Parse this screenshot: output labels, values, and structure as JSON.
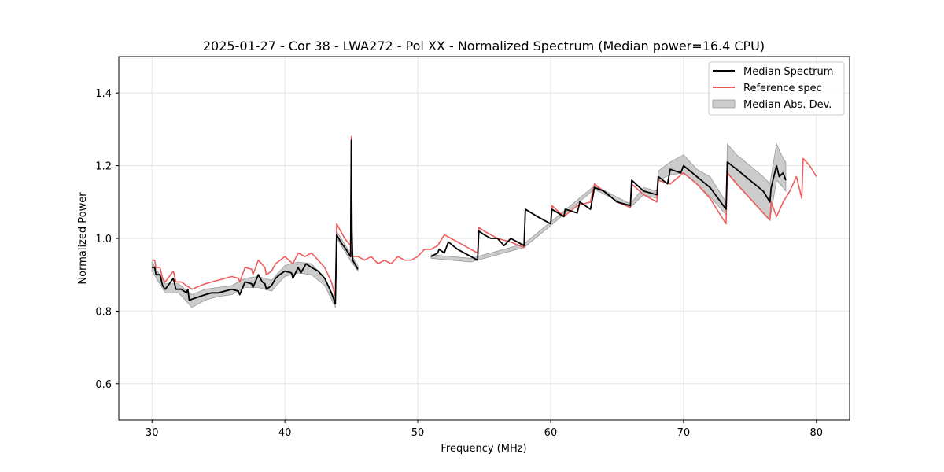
{
  "chart_data": {
    "type": "line",
    "title": "2025-01-27 - Cor 38 - LWA272 - Pol XX - Normalized Spectrum (Median power=16.4 CPU)",
    "xlabel": "Frequency (MHz)",
    "ylabel": "Normalized Power",
    "xlim": [
      27.5,
      82.5
    ],
    "ylim": [
      0.5,
      1.5
    ],
    "xticks": [
      30,
      40,
      50,
      60,
      70,
      80
    ],
    "yticks": [
      0.6,
      0.8,
      1.0,
      1.2,
      1.4
    ],
    "xtick_labels": [
      "30",
      "40",
      "50",
      "60",
      "70",
      "80"
    ],
    "ytick_labels": [
      "0.6",
      "0.8",
      "1.0",
      "1.2",
      "1.4"
    ],
    "grid": true,
    "legend_position": "top-right",
    "colors": {
      "median": "#000000",
      "reference": "#ee5555",
      "band_fill": "#cccccc",
      "band_edge": "#999999"
    },
    "series": [
      {
        "name": "Median Spectrum",
        "kind": "line",
        "x": [
          30.0,
          30.2,
          30.3,
          30.6,
          30.8,
          31.0,
          31.2,
          31.6,
          31.8,
          32.2,
          32.6,
          32.7,
          32.8,
          33.2,
          33.6,
          34.0,
          34.5,
          35.0,
          35.5,
          36.0,
          36.5,
          36.6,
          37.0,
          37.5,
          37.6,
          38.0,
          38.3,
          38.5,
          38.6,
          39.0,
          39.3,
          39.6,
          40.0,
          40.5,
          40.6,
          41.0,
          41.2,
          41.6,
          42.0,
          42.5,
          43.0,
          43.5,
          43.8,
          43.9,
          44.2,
          44.6,
          44.95,
          45.0,
          45.05,
          45.1,
          45.5
        ],
        "y": [
          0.92,
          0.92,
          0.9,
          0.9,
          0.87,
          0.86,
          0.87,
          0.89,
          0.86,
          0.86,
          0.85,
          0.86,
          0.83,
          0.835,
          0.84,
          0.845,
          0.85,
          0.85,
          0.855,
          0.86,
          0.855,
          0.845,
          0.88,
          0.875,
          0.865,
          0.9,
          0.88,
          0.875,
          0.86,
          0.87,
          0.89,
          0.9,
          0.91,
          0.905,
          0.89,
          0.92,
          0.905,
          0.93,
          0.92,
          0.91,
          0.89,
          0.85,
          0.82,
          1.01,
          0.99,
          0.97,
          0.95,
          1.27,
          1.02,
          0.94,
          0.915
        ]
      },
      {
        "name": "Median Spectrum (upper segment)",
        "kind": "line",
        "x": [
          51.0,
          51.5,
          51.6,
          52.0,
          52.3,
          53.0,
          54.0,
          54.5,
          54.6,
          55.0,
          55.5,
          56.0,
          56.5,
          57.0,
          57.5,
          58.0,
          58.1,
          59.0,
          60.0,
          60.1,
          61.0,
          61.1,
          62.0,
          62.2,
          63.0,
          63.3,
          64.0,
          65.0,
          66.0,
          66.1,
          67.0,
          68.0,
          68.1,
          68.8,
          69.0,
          69.8,
          70.0,
          71.0,
          72.0,
          73.2,
          73.3,
          74.0,
          75.0,
          76.0,
          76.5,
          76.6,
          77.0,
          77.2,
          77.5,
          77.7
        ],
        "y": [
          0.95,
          0.96,
          0.97,
          0.96,
          0.99,
          0.97,
          0.95,
          0.94,
          1.02,
          1.01,
          1.0,
          1.0,
          0.98,
          1.0,
          0.99,
          0.98,
          1.08,
          1.06,
          1.04,
          1.08,
          1.06,
          1.08,
          1.07,
          1.1,
          1.08,
          1.14,
          1.13,
          1.1,
          1.09,
          1.16,
          1.13,
          1.12,
          1.17,
          1.15,
          1.19,
          1.18,
          1.2,
          1.17,
          1.14,
          1.08,
          1.21,
          1.19,
          1.16,
          1.13,
          1.1,
          1.14,
          1.2,
          1.17,
          1.18,
          1.16
        ]
      },
      {
        "name": "Reference spec",
        "kind": "line",
        "x": [
          30.0,
          30.2,
          30.3,
          30.6,
          30.8,
          31.0,
          31.6,
          31.8,
          32.2,
          32.6,
          33.0,
          34.0,
          34.5,
          35.0,
          35.5,
          36.0,
          36.5,
          36.6,
          37.0,
          37.5,
          37.6,
          38.0,
          38.5,
          38.6,
          39.0,
          39.3,
          40.0,
          40.6,
          41.0,
          41.5,
          42.0,
          42.5,
          43.0,
          43.5,
          43.8,
          43.9,
          44.5,
          44.95,
          45.0,
          45.05,
          45.5,
          46.0,
          46.5,
          47.0,
          47.5,
          48.0,
          48.5,
          49.0,
          49.5,
          50.0,
          50.5,
          51.0,
          51.5,
          52.0,
          53.0,
          54.0,
          54.5,
          54.6,
          55.0,
          56.0,
          57.0,
          58.0,
          58.1,
          59.0,
          60.0,
          60.1,
          61.0,
          62.0,
          63.0,
          63.3,
          64.0,
          65.0,
          66.0,
          66.1,
          67.0,
          68.0,
          68.1,
          69.0,
          70.0,
          71.0,
          72.0,
          73.2,
          73.3,
          74.0,
          75.0,
          76.0,
          76.5,
          76.6,
          77.0,
          77.5,
          78.0,
          78.5,
          78.9,
          79.0,
          79.5,
          80.0
        ],
        "y": [
          0.94,
          0.94,
          0.92,
          0.92,
          0.89,
          0.88,
          0.91,
          0.88,
          0.88,
          0.87,
          0.86,
          0.875,
          0.88,
          0.885,
          0.89,
          0.895,
          0.89,
          0.88,
          0.92,
          0.915,
          0.9,
          0.94,
          0.92,
          0.9,
          0.91,
          0.93,
          0.95,
          0.93,
          0.96,
          0.95,
          0.96,
          0.94,
          0.92,
          0.88,
          0.84,
          1.04,
          1.0,
          0.98,
          1.28,
          0.95,
          0.95,
          0.94,
          0.95,
          0.93,
          0.94,
          0.93,
          0.95,
          0.94,
          0.94,
          0.95,
          0.97,
          0.97,
          0.98,
          1.01,
          0.99,
          0.97,
          0.96,
          1.03,
          1.02,
          1.0,
          0.99,
          0.975,
          1.08,
          1.06,
          1.04,
          1.09,
          1.06,
          1.09,
          1.1,
          1.15,
          1.13,
          1.1,
          1.085,
          1.15,
          1.12,
          1.1,
          1.16,
          1.15,
          1.18,
          1.15,
          1.11,
          1.04,
          1.18,
          1.15,
          1.11,
          1.07,
          1.05,
          1.1,
          1.06,
          1.1,
          1.13,
          1.17,
          1.11,
          1.22,
          1.2,
          1.17
        ]
      },
      {
        "name": "Median Abs. Dev.",
        "kind": "band",
        "x": [
          30.0,
          31.0,
          32.0,
          33.0,
          34.0,
          35.0,
          36.0,
          37.0,
          38.0,
          39.0,
          40.0,
          41.0,
          42.0,
          43.0,
          43.8,
          43.9,
          45.0,
          45.5
        ],
        "y_low": [
          0.91,
          0.85,
          0.85,
          0.81,
          0.83,
          0.84,
          0.845,
          0.865,
          0.865,
          0.855,
          0.895,
          0.905,
          0.9,
          0.87,
          0.81,
          1.0,
          0.935,
          0.91
        ],
        "y_high": [
          0.935,
          0.875,
          0.875,
          0.845,
          0.86,
          0.865,
          0.87,
          0.89,
          0.895,
          0.885,
          0.925,
          0.935,
          0.93,
          0.89,
          0.83,
          1.02,
          0.955,
          0.925
        ]
      },
      {
        "name": "Median Abs. Dev. (upper segment)",
        "kind": "band",
        "x": [
          51.0,
          54.0,
          58.0,
          60.0,
          63.3,
          66.0,
          67.0,
          68.0,
          68.1,
          69.0,
          70.0,
          71.0,
          72.0,
          73.2,
          73.3,
          74.0,
          75.0,
          76.0,
          76.5,
          77.0,
          77.5,
          77.7
        ],
        "y_low": [
          0.945,
          0.935,
          0.975,
          1.035,
          1.135,
          1.085,
          1.12,
          1.11,
          1.16,
          1.175,
          1.18,
          1.15,
          1.115,
          1.065,
          1.18,
          1.15,
          1.11,
          1.07,
          1.05,
          1.16,
          1.14,
          1.13
        ],
        "y_high": [
          0.955,
          0.945,
          0.985,
          1.045,
          1.145,
          1.095,
          1.14,
          1.13,
          1.185,
          1.21,
          1.23,
          1.19,
          1.17,
          1.1,
          1.26,
          1.23,
          1.2,
          1.17,
          1.15,
          1.26,
          1.22,
          1.21
        ]
      }
    ],
    "legend": [
      {
        "label": "Median Spectrum",
        "kind": "line",
        "color": "#000000"
      },
      {
        "label": "Reference spec",
        "kind": "line",
        "color": "#ee5555"
      },
      {
        "label": "Median Abs. Dev.",
        "kind": "band",
        "color": "#cccccc"
      }
    ]
  }
}
